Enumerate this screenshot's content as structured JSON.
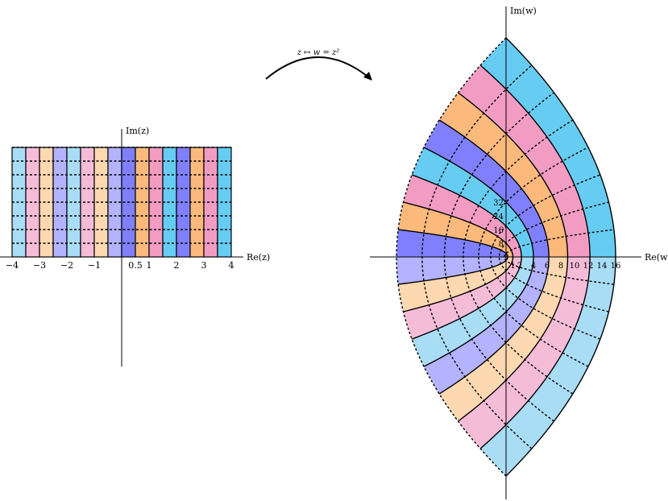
{
  "z_plane": {
    "axis_labels": {
      "re": "Re(z)",
      "im": "Im(z)"
    },
    "x_tick_labels": [
      {
        "label": "−4",
        "value": -4
      },
      {
        "label": "−3",
        "value": -3
      },
      {
        "label": "−2",
        "value": -2
      },
      {
        "label": "−1",
        "value": -1
      },
      {
        "label": "0.5",
        "value": 0.5
      },
      {
        "label": "1",
        "value": 1
      },
      {
        "label": "2",
        "value": 2
      },
      {
        "label": "3",
        "value": 3
      },
      {
        "label": "4",
        "value": 4
      }
    ],
    "strip_boundaries": [
      -4,
      -3.5,
      -3,
      -2.5,
      -2,
      -1.5,
      -1,
      -0.5,
      0,
      0.5,
      1,
      1.5,
      2,
      2.5,
      3,
      3.5,
      4
    ],
    "strip_colors": [
      "#a9dcf5",
      "#f5bcd8",
      "#fdd8b0",
      "#b3b3ff",
      "#a9dcf5",
      "#f5bcd8",
      "#fdd8b0",
      "#b3b3ff",
      "#8080ff",
      "#fbb97c",
      "#f29cc4",
      "#66ccf2",
      "#8080ff",
      "#fbb97c",
      "#f29cc4",
      "#66ccf2"
    ],
    "grid_y_values": [
      0.5,
      1,
      1.5,
      2,
      2.5,
      3,
      3.5,
      4
    ],
    "y_max": 4
  },
  "mapping": {
    "label": "z ↦ w = z²"
  },
  "w_plane": {
    "axis_labels": {
      "re": "Re(w)",
      "im": "Im(w)"
    },
    "re_tick_labels": [
      {
        "label": "1",
        "value": 1
      },
      {
        "label": "2",
        "value": 2
      },
      {
        "label": "4",
        "value": 4
      },
      {
        "label": "6",
        "value": 6
      },
      {
        "label": "8",
        "value": 8
      },
      {
        "label": "10",
        "value": 10
      },
      {
        "label": "12",
        "value": 12
      },
      {
        "label": "14",
        "value": 14
      },
      {
        "label": "16",
        "value": 16
      }
    ],
    "im_tick_labels": [
      {
        "label": "8",
        "value": 8
      },
      {
        "label": "16",
        "value": 16
      },
      {
        "label": "24",
        "value": 24
      },
      {
        "label": "32",
        "value": 32
      }
    ]
  }
}
